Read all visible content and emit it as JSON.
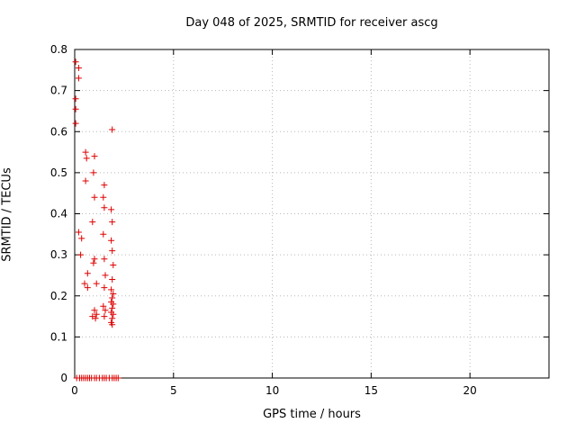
{
  "chart_data": {
    "type": "scatter",
    "title": "Day 048 of 2025, SRMTID for receiver ascg",
    "xlabel": "GPS time / hours",
    "ylabel": "SRMTID / TECUs",
    "xlim": [
      0,
      24
    ],
    "ylim": [
      0,
      0.8
    ],
    "xticks": [
      0,
      5,
      10,
      15,
      20
    ],
    "yticks": [
      0,
      0.1,
      0.2,
      0.3,
      0.4,
      0.5,
      0.6,
      0.7,
      0.8
    ],
    "grid": "dotted",
    "legend_position": "none",
    "marker": "plus",
    "marker_color": "#dd0000",
    "marker_size": 7,
    "series_name": "SRMTID",
    "points": [
      [
        0.05,
        0.77
      ],
      [
        0.2,
        0.755
      ],
      [
        0.2,
        0.73
      ],
      [
        0.05,
        0.68
      ],
      [
        0.05,
        0.655
      ],
      [
        0.05,
        0.62
      ],
      [
        0.2,
        0.355
      ],
      [
        0.35,
        0.34
      ],
      [
        0.3,
        0.3
      ],
      [
        0.55,
        0.55
      ],
      [
        0.6,
        0.535
      ],
      [
        0.55,
        0.48
      ],
      [
        0.65,
        0.255
      ],
      [
        0.5,
        0.23
      ],
      [
        0.65,
        0.22
      ],
      [
        1.0,
        0.54
      ],
      [
        0.95,
        0.5
      ],
      [
        1.0,
        0.44
      ],
      [
        0.9,
        0.38
      ],
      [
        1.0,
        0.29
      ],
      [
        0.95,
        0.28
      ],
      [
        1.1,
        0.23
      ],
      [
        1.0,
        0.165
      ],
      [
        1.1,
        0.155
      ],
      [
        0.9,
        0.15
      ],
      [
        1.05,
        0.145
      ],
      [
        1.5,
        0.47
      ],
      [
        1.45,
        0.44
      ],
      [
        1.5,
        0.415
      ],
      [
        1.45,
        0.35
      ],
      [
        1.5,
        0.29
      ],
      [
        1.55,
        0.25
      ],
      [
        1.5,
        0.22
      ],
      [
        1.45,
        0.175
      ],
      [
        1.55,
        0.165
      ],
      [
        1.5,
        0.15
      ],
      [
        1.9,
        0.605
      ],
      [
        1.85,
        0.41
      ],
      [
        1.9,
        0.38
      ],
      [
        1.85,
        0.335
      ],
      [
        1.9,
        0.31
      ],
      [
        1.95,
        0.275
      ],
      [
        1.9,
        0.24
      ],
      [
        1.85,
        0.215
      ],
      [
        1.95,
        0.205
      ],
      [
        1.9,
        0.195
      ],
      [
        1.85,
        0.185
      ],
      [
        1.95,
        0.18
      ],
      [
        1.9,
        0.17
      ],
      [
        1.85,
        0.16
      ],
      [
        1.95,
        0.155
      ],
      [
        1.9,
        0.145
      ],
      [
        1.85,
        0.135
      ],
      [
        1.9,
        0.13
      ],
      [
        0.1,
        0
      ],
      [
        0.25,
        0
      ],
      [
        0.35,
        0
      ],
      [
        0.45,
        0
      ],
      [
        0.55,
        0
      ],
      [
        0.65,
        0
      ],
      [
        0.75,
        0
      ],
      [
        0.85,
        0
      ],
      [
        1.0,
        0
      ],
      [
        1.1,
        0
      ],
      [
        1.25,
        0
      ],
      [
        1.4,
        0
      ],
      [
        1.5,
        0
      ],
      [
        1.6,
        0
      ],
      [
        1.75,
        0
      ],
      [
        1.9,
        0
      ],
      [
        2.0,
        0
      ],
      [
        2.1,
        0
      ],
      [
        2.2,
        0
      ]
    ]
  }
}
